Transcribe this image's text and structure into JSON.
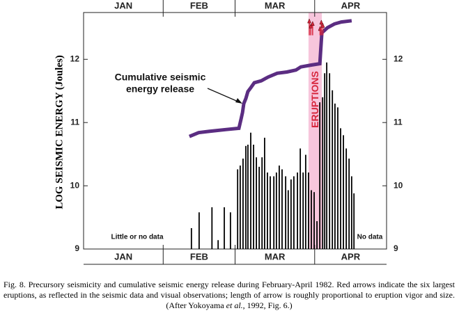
{
  "chart_data": {
    "type": "bar",
    "y_label": "LOG SEISMIC ENERGY (Joules)",
    "ylim": [
      9,
      12.74
    ],
    "yticks": [
      9,
      10,
      11,
      12
    ],
    "xlim": [
      0,
      118
    ],
    "xticks": [
      31,
      59,
      90
    ],
    "months": [
      "JAN",
      "FEB",
      "MAR",
      "APR"
    ],
    "bars": {
      "color": "#000000",
      "x": [
        42,
        45,
        50,
        52.4,
        54.8,
        57.2,
        60.0,
        61.0,
        62.1,
        63.2,
        64.0,
        65.1,
        66.2,
        67.3,
        68.4,
        69.5,
        70.5,
        71.6,
        72.7,
        74.1,
        75.1,
        76.2,
        77.3,
        78.7,
        79.7,
        80.8,
        81.9,
        83.3,
        84.4,
        85.5,
        86.5,
        87.6,
        88.7,
        89.8,
        90.9,
        92.0,
        93.1,
        93.9,
        94.7,
        95.8,
        96.9,
        97.9,
        99.0,
        100.1,
        101.2,
        102.3,
        103.4,
        104.4,
        105.3
      ],
      "values": [
        9.33,
        9.58,
        9.66,
        9.14,
        9.66,
        9.58,
        10.26,
        10.32,
        10.43,
        10.63,
        10.65,
        10.84,
        10.65,
        10.45,
        10.3,
        10.45,
        10.76,
        10.21,
        10.15,
        10.15,
        10.21,
        10.32,
        10.26,
        10.15,
        9.93,
        10.1,
        10.15,
        10.21,
        10.59,
        10.21,
        10.49,
        10.21,
        9.93,
        9.9,
        9.44,
        11.32,
        11.4,
        11.78,
        11.95,
        11.78,
        11.51,
        11.3,
        11.24,
        10.91,
        10.8,
        10.59,
        10.43,
        10.15,
        9.88
      ]
    },
    "line": {
      "color": "#5b2d82",
      "x": [
        41.2,
        44.8,
        48.8,
        55.6,
        60.5,
        61.3,
        61.9,
        62.4,
        63.2,
        64.0,
        65.1,
        66.5,
        69.2,
        71.9,
        75.4,
        79.2,
        82.7,
        84.6,
        88.7,
        92.0,
        92.8,
        95.0,
        97.7,
        100.4,
        104.4
      ],
      "values": [
        10.78,
        10.84,
        10.86,
        10.89,
        10.91,
        11.05,
        11.16,
        11.3,
        11.38,
        11.49,
        11.55,
        11.63,
        11.66,
        11.72,
        11.78,
        11.8,
        11.83,
        11.88,
        11.91,
        11.93,
        12.42,
        12.5,
        12.56,
        12.59,
        12.61
      ]
    },
    "eruption_span": [
      87.6,
      92.8
    ],
    "eruption_color": "#f7c6dc",
    "arrows": {
      "color": "#d7263d",
      "base": 12.38,
      "x": [
        87.9,
        88.5,
        89.2,
        92.1,
        92.6,
        93.2
      ],
      "values": [
        12.64,
        12.56,
        12.6,
        12.52,
        12.62,
        12.57
      ]
    },
    "annotations": {
      "cumulative_label": [
        "Cumulative seismic",
        "energy release"
      ],
      "left_note": "Little or no data",
      "right_note": "No data",
      "eruptions_label": "ERUPTIONS"
    },
    "caption": {
      "main": "Fig. 8. Precursory seismicity and cumulative seismic energy release during February-April 1982. Red arrows indicate the six largest eruptions, as reflected in the seismic data and visual observations; length of arrow is roughly proportional to eruption vigor and size.",
      "source_pre": "(After Yokoyama ",
      "source_italic": "et al.",
      "source_post": ", 1992, Fig. 6.)"
    }
  }
}
